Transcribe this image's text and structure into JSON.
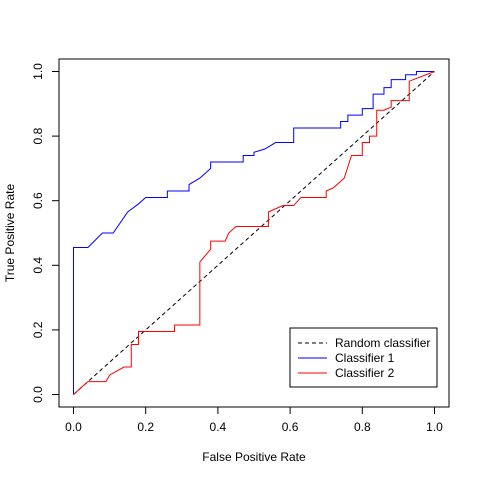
{
  "chart_data": {
    "type": "line",
    "title": "",
    "xlabel": "False Positive Rate",
    "ylabel": "True Positive Rate",
    "xlim": [
      0.0,
      1.0
    ],
    "ylim": [
      0.0,
      1.0
    ],
    "xticks": [
      "0.0",
      "0.2",
      "0.4",
      "0.6",
      "0.8",
      "1.0"
    ],
    "yticks": [
      "0.0",
      "0.2",
      "0.4",
      "0.6",
      "0.8",
      "1.0"
    ],
    "grid": false,
    "legend_position": "bottom-right",
    "series": [
      {
        "name": "Random classifier",
        "color": "#000000",
        "dash": "dashed",
        "x": [
          0.0,
          1.0
        ],
        "y": [
          0.0,
          1.0
        ]
      },
      {
        "name": "Classifier 1",
        "color": "#0000ff",
        "dash": "solid",
        "x": [
          0.0,
          0.0,
          0.04,
          0.08,
          0.11,
          0.15,
          0.18,
          0.2,
          0.26,
          0.26,
          0.32,
          0.32,
          0.35,
          0.38,
          0.38,
          0.47,
          0.47,
          0.5,
          0.5,
          0.53,
          0.56,
          0.56,
          0.61,
          0.61,
          0.74,
          0.74,
          0.76,
          0.76,
          0.8,
          0.8,
          0.83,
          0.83,
          0.86,
          0.86,
          0.88,
          0.88,
          0.92,
          0.92,
          0.95,
          0.95,
          1.0
        ],
        "y": [
          0.0,
          0.455,
          0.455,
          0.5,
          0.5,
          0.565,
          0.59,
          0.61,
          0.61,
          0.63,
          0.63,
          0.65,
          0.67,
          0.7,
          0.72,
          0.72,
          0.74,
          0.74,
          0.75,
          0.76,
          0.78,
          0.78,
          0.78,
          0.825,
          0.825,
          0.845,
          0.845,
          0.865,
          0.865,
          0.885,
          0.885,
          0.93,
          0.93,
          0.95,
          0.95,
          0.975,
          0.975,
          0.99,
          0.99,
          1.0,
          1.0
        ]
      },
      {
        "name": "Classifier 2",
        "color": "#ff0000",
        "dash": "solid",
        "x": [
          0.0,
          0.03,
          0.04,
          0.09,
          0.1,
          0.14,
          0.16,
          0.16,
          0.18,
          0.18,
          0.2,
          0.2,
          0.28,
          0.28,
          0.35,
          0.35,
          0.38,
          0.38,
          0.42,
          0.43,
          0.45,
          0.54,
          0.54,
          0.58,
          0.61,
          0.63,
          0.7,
          0.7,
          0.72,
          0.75,
          0.77,
          0.8,
          0.8,
          0.82,
          0.82,
          0.84,
          0.84,
          0.86,
          0.88,
          0.88,
          0.93,
          0.93,
          1.0
        ],
        "y": [
          0.0,
          0.03,
          0.04,
          0.04,
          0.06,
          0.085,
          0.085,
          0.155,
          0.155,
          0.195,
          0.195,
          0.195,
          0.195,
          0.215,
          0.215,
          0.41,
          0.45,
          0.475,
          0.475,
          0.5,
          0.52,
          0.52,
          0.565,
          0.585,
          0.585,
          0.61,
          0.61,
          0.63,
          0.64,
          0.67,
          0.74,
          0.74,
          0.78,
          0.78,
          0.8,
          0.8,
          0.88,
          0.88,
          0.89,
          0.91,
          0.91,
          0.97,
          1.0
        ]
      }
    ]
  }
}
